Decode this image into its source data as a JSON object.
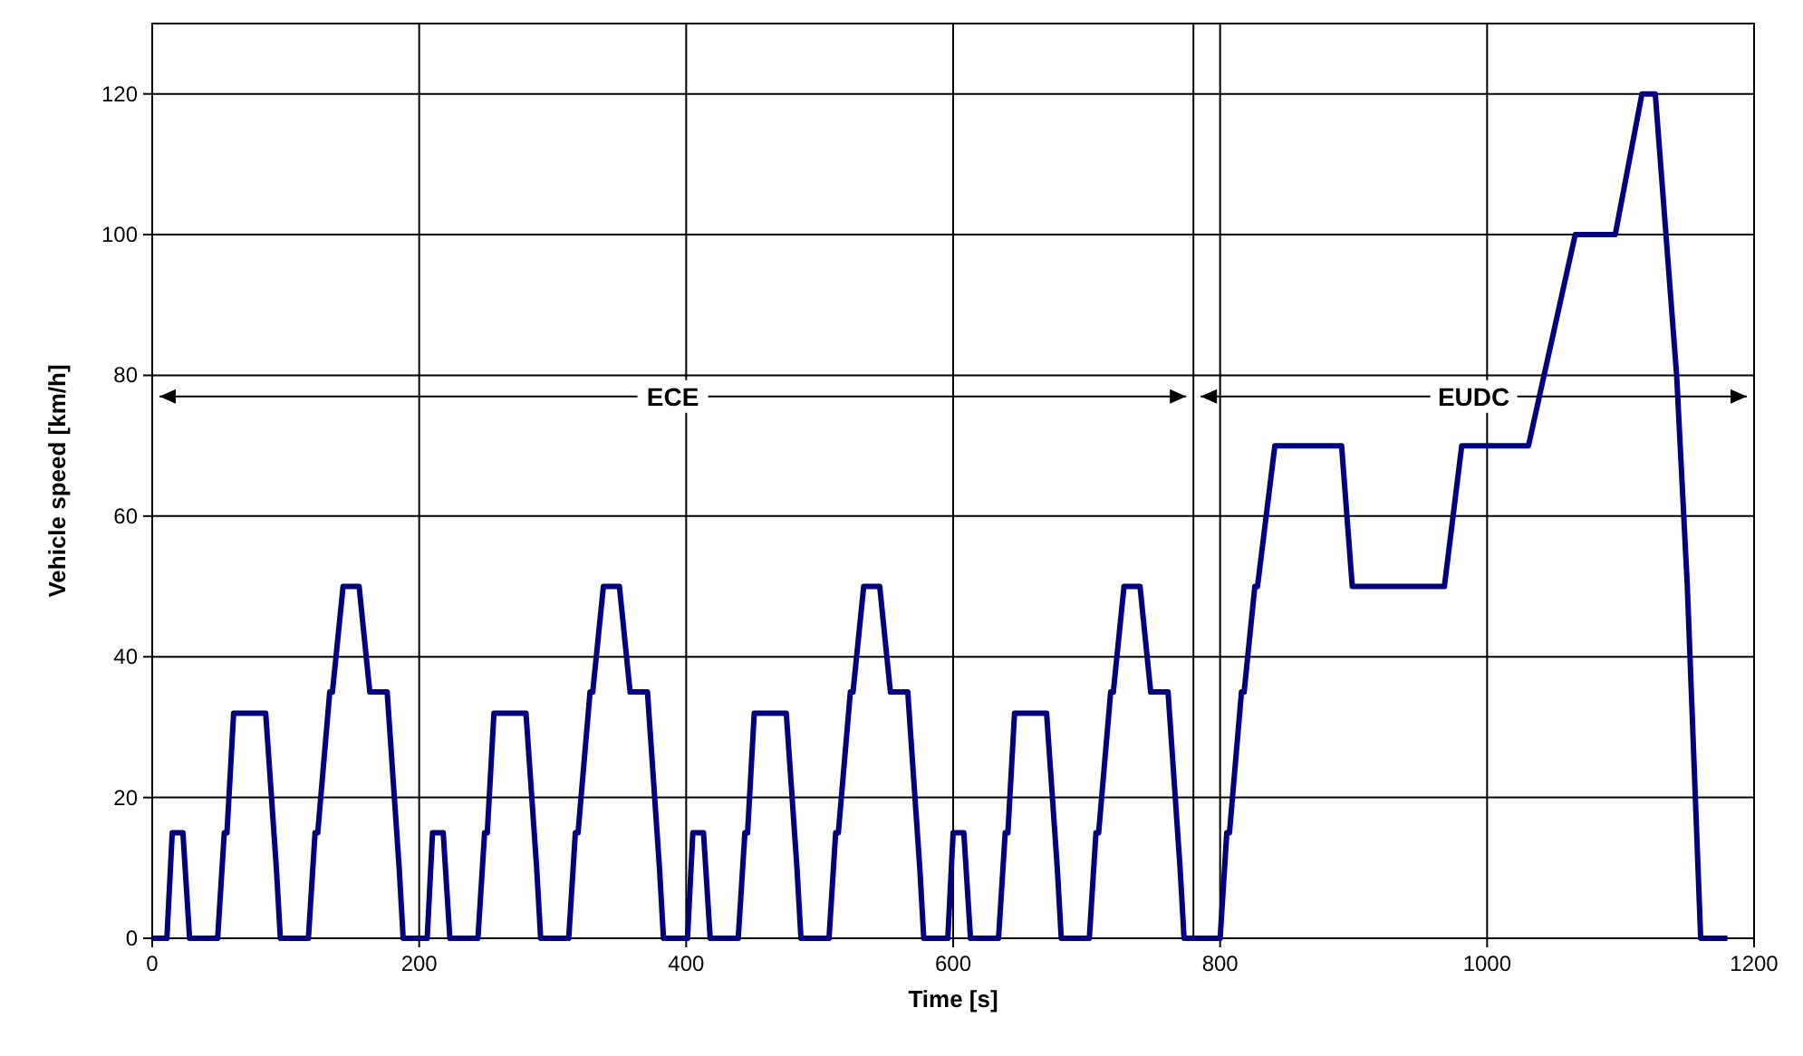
{
  "chart_data": {
    "type": "line",
    "xlabel": "Time [s]",
    "ylabel": "Vehicle speed [km/h]",
    "xlim": [
      0,
      1200
    ],
    "ylim": [
      0,
      130
    ],
    "xticks": [
      0,
      200,
      400,
      600,
      800,
      1000,
      1200
    ],
    "yticks": [
      0,
      20,
      40,
      60,
      80,
      100,
      120
    ],
    "grid": true,
    "ref_lines": [
      {
        "axis": "x",
        "value": 780,
        "color": "#000000"
      }
    ],
    "annotations": [
      {
        "text": "ECE",
        "x": 780,
        "y": 77
      },
      {
        "text": "EUDC",
        "x": 780,
        "y": 77
      }
    ],
    "series": [
      {
        "color": "#000080",
        "x": [
          0,
          11,
          15,
          23,
          28,
          49,
          54,
          56,
          61,
          85,
          93,
          96,
          117,
          122,
          124,
          133,
          135,
          143,
          155,
          163,
          176,
          185,
          188,
          206,
          210,
          218,
          223,
          244,
          249,
          251,
          256,
          280,
          288,
          291,
          312,
          317,
          319,
          328,
          330,
          338,
          350,
          358,
          371,
          380,
          383,
          401,
          405,
          413,
          418,
          439,
          444,
          446,
          451,
          475,
          483,
          486,
          507,
          512,
          514,
          523,
          525,
          533,
          545,
          553,
          566,
          575,
          578,
          596,
          600,
          608,
          613,
          634,
          639,
          641,
          646,
          670,
          678,
          681,
          702,
          707,
          709,
          718,
          720,
          728,
          740,
          748,
          761,
          770,
          773,
          800,
          805,
          807,
          816,
          818,
          826,
          828,
          841,
          891,
          899,
          968,
          981,
          1031,
          1066,
          1096,
          1116,
          1126,
          1142,
          1150,
          1160,
          1180
        ],
        "values": [
          0,
          0,
          15,
          15,
          0,
          0,
          15,
          15,
          32,
          32,
          10,
          0,
          0,
          15,
          15,
          35,
          35,
          50,
          50,
          35,
          35,
          10,
          0,
          0,
          15,
          15,
          0,
          0,
          15,
          15,
          32,
          32,
          10,
          0,
          0,
          15,
          15,
          35,
          35,
          50,
          50,
          35,
          35,
          10,
          0,
          0,
          15,
          15,
          0,
          0,
          15,
          15,
          32,
          32,
          10,
          0,
          0,
          15,
          15,
          35,
          35,
          50,
          50,
          35,
          35,
          10,
          0,
          0,
          15,
          15,
          0,
          0,
          15,
          15,
          32,
          32,
          10,
          0,
          0,
          15,
          15,
          35,
          35,
          50,
          50,
          35,
          35,
          10,
          0,
          0,
          15,
          15,
          35,
          35,
          50,
          50,
          70,
          70,
          50,
          50,
          70,
          70,
          100,
          100,
          120,
          120,
          80,
          50,
          0,
          0
        ]
      }
    ]
  }
}
